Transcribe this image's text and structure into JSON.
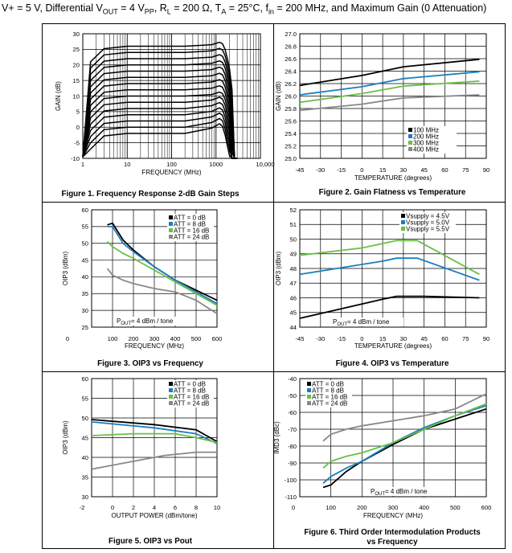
{
  "header": {
    "prefix": "V+ = 5 V, Differential V",
    "out_sub": "OUT",
    "mid1": " = 4 V",
    "pp_sub": "PP",
    "mid2": ", R",
    "l_sub": "L",
    "mid3": " = 200 Ω, T",
    "a_sub": "A",
    "mid4": " = 25°C, f",
    "in_sub": "in",
    "suffix": " = 200 MHz, and Maximum Gain (0 Attenuation)"
  },
  "chart_data": [
    {
      "id": "fig1",
      "type": "line",
      "caption": "Figure 1. Frequency Response 2-dB Gain Steps",
      "xlabel": "FREQUENCY (MHz)",
      "ylabel": "GAIN (dB)",
      "x_scale": "log",
      "xlim": [
        1,
        10000
      ],
      "ylim": [
        -10,
        30
      ],
      "x_ticks": [
        "1",
        "10",
        "100",
        "1000",
        "10,000"
      ],
      "y_ticks": [
        "30",
        "25",
        "20",
        "15",
        "10",
        "5",
        "0",
        "-5",
        "-10"
      ],
      "gain_steps_db": [
        26,
        24,
        22,
        20,
        18,
        16,
        14,
        12,
        10,
        8,
        6,
        4,
        2,
        0,
        -2
      ],
      "grid": true
    },
    {
      "id": "fig2",
      "type": "line",
      "caption": "Figure 2. Gain Flatness vs Temperature",
      "xlabel": "TEMPERATURE (degrees)",
      "ylabel": "GAIN (dB)",
      "xlim": [
        -45,
        90
      ],
      "ylim": [
        25.0,
        27.0
      ],
      "x_ticks": [
        "-45",
        "-30",
        "-15",
        "0",
        "15",
        "30",
        "45",
        "60",
        "75",
        "90"
      ],
      "y_ticks": [
        "27.0",
        "26.8",
        "26.6",
        "26.4",
        "26.2",
        "26.0",
        "25.8",
        "25.6",
        "25.4",
        "25.2",
        "25.0"
      ],
      "legend": "right",
      "series": [
        {
          "name": "100 MHz",
          "color": "#000000",
          "x": [
            -45,
            0,
            30,
            85
          ],
          "y": [
            26.17,
            26.33,
            26.47,
            26.59
          ]
        },
        {
          "name": "200 MHz",
          "color": "#1a7fc1",
          "x": [
            -45,
            0,
            30,
            85
          ],
          "y": [
            26.02,
            26.15,
            26.28,
            26.39
          ]
        },
        {
          "name": "300 MHz",
          "color": "#6abf45",
          "x": [
            -45,
            0,
            30,
            85
          ],
          "y": [
            25.9,
            26.04,
            26.16,
            26.24
          ]
        },
        {
          "name": "400 MHz",
          "color": "#888888",
          "x": [
            -45,
            0,
            30,
            85
          ],
          "y": [
            25.77,
            25.87,
            25.97,
            26.02
          ]
        }
      ],
      "grid": true
    },
    {
      "id": "fig3",
      "type": "line",
      "caption": "Figure 3. OIP3 vs Frequency",
      "xlabel": "FREQUENCY (MHz)",
      "ylabel": "OIP3 (dBm)",
      "xlim": [
        0,
        600
      ],
      "ylim": [
        25,
        60
      ],
      "x_ticks": [
        "0",
        "100",
        "200",
        "300",
        "400",
        "500",
        "600"
      ],
      "y_ticks": [
        "60",
        "55",
        "50",
        "45",
        "40",
        "35",
        "30",
        "25"
      ],
      "annotation": {
        "pre": "P",
        "sub": "OUT",
        "post": "= 4 dBm / tone"
      },
      "legend": "top-right",
      "series": [
        {
          "name": "ATT = 0 dB",
          "color": "#000000",
          "x": [
            75,
            100,
            150,
            200,
            300,
            400,
            500,
            600
          ],
          "y": [
            55.5,
            56,
            51,
            48,
            43,
            39,
            36,
            33
          ]
        },
        {
          "name": "ATT = 8 dB",
          "color": "#1a7fc1",
          "x": [
            75,
            100,
            150,
            200,
            300,
            400,
            500,
            600
          ],
          "y": [
            55,
            55,
            50,
            47.5,
            43,
            39,
            35.5,
            32
          ]
        },
        {
          "name": "ATT = 16 dB",
          "color": "#6abf45",
          "x": [
            75,
            100,
            150,
            200,
            300,
            400,
            500,
            600
          ],
          "y": [
            50.5,
            49,
            47,
            45.5,
            42,
            38.5,
            35,
            31.5
          ]
        },
        {
          "name": "ATT = 24 dB",
          "color": "#888888",
          "x": [
            75,
            100,
            150,
            200,
            300,
            400,
            500,
            600
          ],
          "y": [
            42.5,
            40.5,
            39,
            38,
            36.5,
            35.5,
            33,
            29
          ]
        }
      ],
      "grid": true
    },
    {
      "id": "fig4",
      "type": "line",
      "caption": "Figure 4. OIP3 vs Temperature",
      "xlabel": "TEMPERATURE (degrees)",
      "ylabel": "OIP3 (dBm)",
      "xlim": [
        -45,
        90
      ],
      "ylim": [
        44,
        52
      ],
      "x_ticks": [
        "-45",
        "-30",
        "-15",
        "0",
        "15",
        "30",
        "45",
        "60",
        "75",
        "90"
      ],
      "y_ticks": [
        "52",
        "51",
        "50",
        "49",
        "48",
        "47",
        "46",
        "45",
        "44"
      ],
      "annotation": {
        "pre": "P",
        "sub": "OUT",
        "post": "= 4 dBm / tone"
      },
      "legend": "top-right",
      "series": [
        {
          "name": "Vsupply = 4.5V",
          "color": "#000000",
          "x": [
            -45,
            15,
            25,
            45,
            85
          ],
          "y": [
            44.6,
            45.9,
            46.1,
            46.1,
            46.0
          ]
        },
        {
          "name": "Vsupply = 5.0V",
          "color": "#1a7fc1",
          "x": [
            -45,
            15,
            25,
            40,
            85
          ],
          "y": [
            47.6,
            48.5,
            48.7,
            48.7,
            47.2
          ]
        },
        {
          "name": "Vsupply = 5.5V",
          "color": "#6abf45",
          "x": [
            -45,
            0,
            25,
            40,
            85
          ],
          "y": [
            48.9,
            49.4,
            49.9,
            49.9,
            47.6
          ]
        }
      ],
      "grid": true
    },
    {
      "id": "fig5",
      "type": "line",
      "caption": "Figure 5. OIP3 vs Pout",
      "xlabel": "OUTPUT POWER (dBm/tone)",
      "ylabel": "OIP3 (dBm)",
      "xlim": [
        -2,
        10
      ],
      "ylim": [
        30,
        60
      ],
      "x_ticks": [
        "-2",
        "0",
        "2",
        "4",
        "6",
        "8",
        "10"
      ],
      "y_ticks": [
        "60",
        "55",
        "50",
        "45",
        "40",
        "35",
        "30"
      ],
      "legend": "top-right",
      "series": [
        {
          "name": "ATT = 0 dB",
          "color": "#000000",
          "x": [
            -2,
            4,
            8,
            10
          ],
          "y": [
            49.6,
            48.3,
            47,
            44
          ]
        },
        {
          "name": "ATT = 8 dB",
          "color": "#1a7fc1",
          "x": [
            -2,
            4,
            8,
            10
          ],
          "y": [
            49,
            47.5,
            46,
            43.5
          ]
        },
        {
          "name": "ATT = 16 dB",
          "color": "#6abf45",
          "x": [
            -2,
            2,
            6,
            8,
            10
          ],
          "y": [
            45.5,
            46,
            46,
            45,
            43.8
          ]
        },
        {
          "name": "ATT = 24 dB",
          "color": "#888888",
          "x": [
            -2,
            2,
            5,
            8,
            10
          ],
          "y": [
            37,
            39,
            40.5,
            41.3,
            41.3
          ]
        }
      ],
      "grid": true
    },
    {
      "id": "fig6",
      "type": "line",
      "caption_line1": "Figure 6. Third Order Intermodulation Products",
      "caption_line2": "vs Frequency",
      "xlabel": "FREQUENCY (MHz)",
      "ylabel": "IMD3 (dBc)",
      "xlim": [
        0,
        600
      ],
      "ylim": [
        -110,
        -40
      ],
      "x_ticks": [
        "0",
        "100",
        "200",
        "300",
        "400",
        "500",
        "600"
      ],
      "y_ticks": [
        "-40",
        "-50",
        "-60",
        "-70",
        "-80",
        "-90",
        "-100",
        "-110"
      ],
      "annotation": {
        "pre": "P",
        "sub": "OUT",
        "post": "= 4 dBm / tone"
      },
      "legend": "top-left",
      "series": [
        {
          "name": "ATT = 0 dB",
          "color": "#000000",
          "x": [
            75,
            100,
            150,
            200,
            300,
            400,
            500,
            600
          ],
          "y": [
            -104.5,
            -103,
            -95,
            -89,
            -79,
            -70,
            -64,
            -58
          ]
        },
        {
          "name": "ATT = 8 dB",
          "color": "#1a7fc1",
          "x": [
            75,
            100,
            150,
            200,
            300,
            400,
            500,
            600
          ],
          "y": [
            -102,
            -98,
            -93,
            -89,
            -78,
            -69,
            -62,
            -56
          ]
        },
        {
          "name": "ATT = 16 dB",
          "color": "#6abf45",
          "x": [
            75,
            100,
            150,
            200,
            300,
            400,
            500,
            600
          ],
          "y": [
            -93,
            -89,
            -86,
            -84,
            -78,
            -70,
            -62,
            -55
          ]
        },
        {
          "name": "ATT = 24 dB",
          "color": "#888888",
          "x": [
            75,
            100,
            150,
            200,
            300,
            400,
            500,
            600
          ],
          "y": [
            -77,
            -73,
            -70,
            -68,
            -65,
            -62,
            -58,
            -49
          ]
        }
      ],
      "grid": true
    }
  ]
}
